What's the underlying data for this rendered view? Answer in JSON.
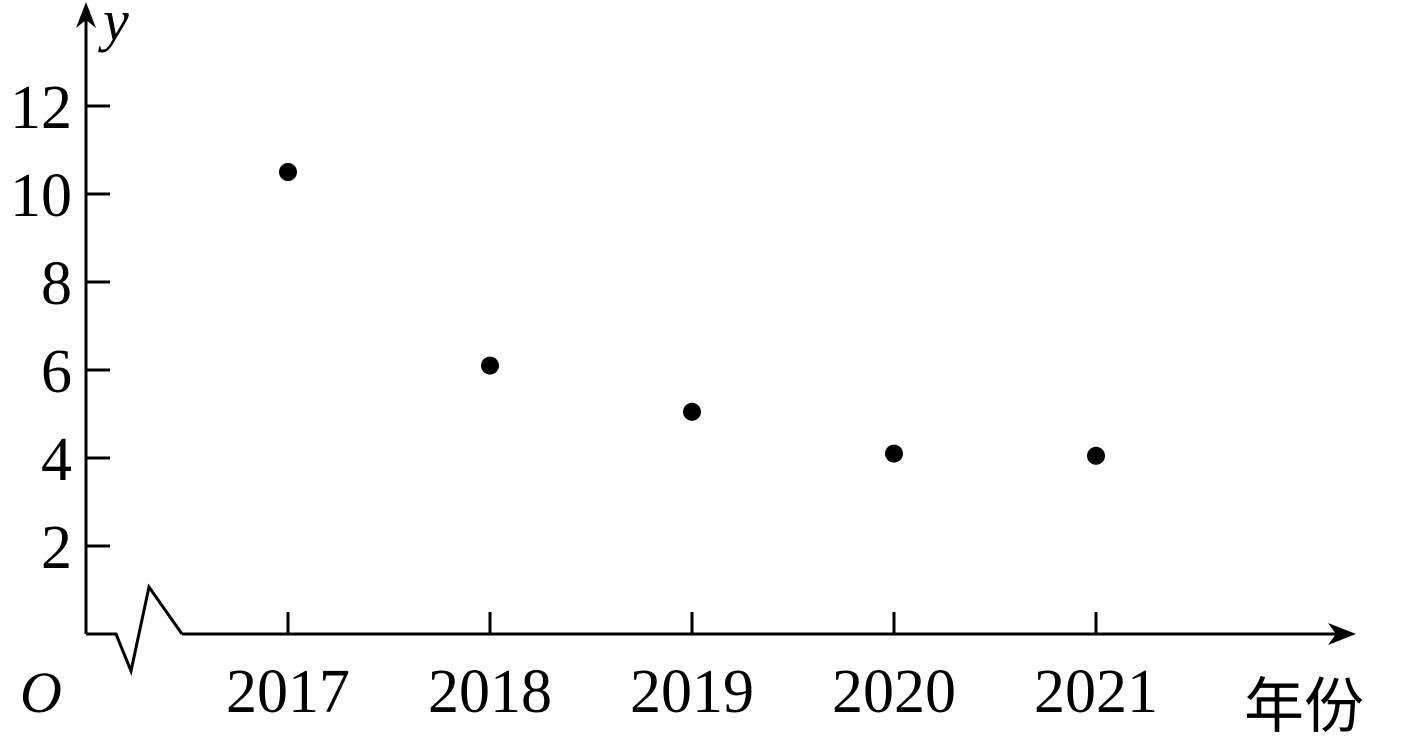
{
  "chart_data": {
    "type": "scatter",
    "title": "",
    "xlabel": "年份",
    "ylabel": "y",
    "origin_label": "O",
    "categories": [
      "2017",
      "2018",
      "2019",
      "2020",
      "2021"
    ],
    "series": [
      {
        "values": [
          10.5,
          6.1,
          5.05,
          4.1,
          4.05
        ]
      }
    ],
    "ylim": [
      0,
      13
    ],
    "yticks": [
      2,
      4,
      6,
      8,
      10,
      12
    ],
    "x_axis_break": true,
    "grid": false,
    "legend": "none",
    "colors": {
      "marker": "#000000",
      "axis": "#000000"
    }
  }
}
